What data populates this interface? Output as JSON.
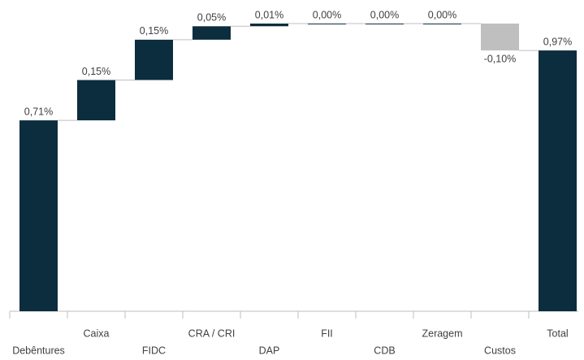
{
  "chart_data": {
    "type": "waterfall",
    "categories": [
      "Debêntures",
      "Caixa",
      "FIDC",
      "CRA / CRI",
      "DAP",
      "FII",
      "CDB",
      "Zeragem",
      "Custos",
      "Total"
    ],
    "values": [
      0.71,
      0.15,
      0.15,
      0.05,
      0.01,
      0.0,
      0.0,
      0.0,
      -0.1,
      0.97
    ],
    "value_labels": [
      "0,71%",
      "0,15%",
      "0,15%",
      "0,05%",
      "0,01%",
      "0,00%",
      "0,00%",
      "0,00%",
      "-0,10%",
      "0,97%"
    ],
    "is_total": [
      false,
      false,
      false,
      false,
      false,
      false,
      false,
      false,
      false,
      true
    ],
    "colors": {
      "increase": "#0b2d3e",
      "decrease": "#bfbfbf",
      "total": "#0b2d3e"
    }
  }
}
